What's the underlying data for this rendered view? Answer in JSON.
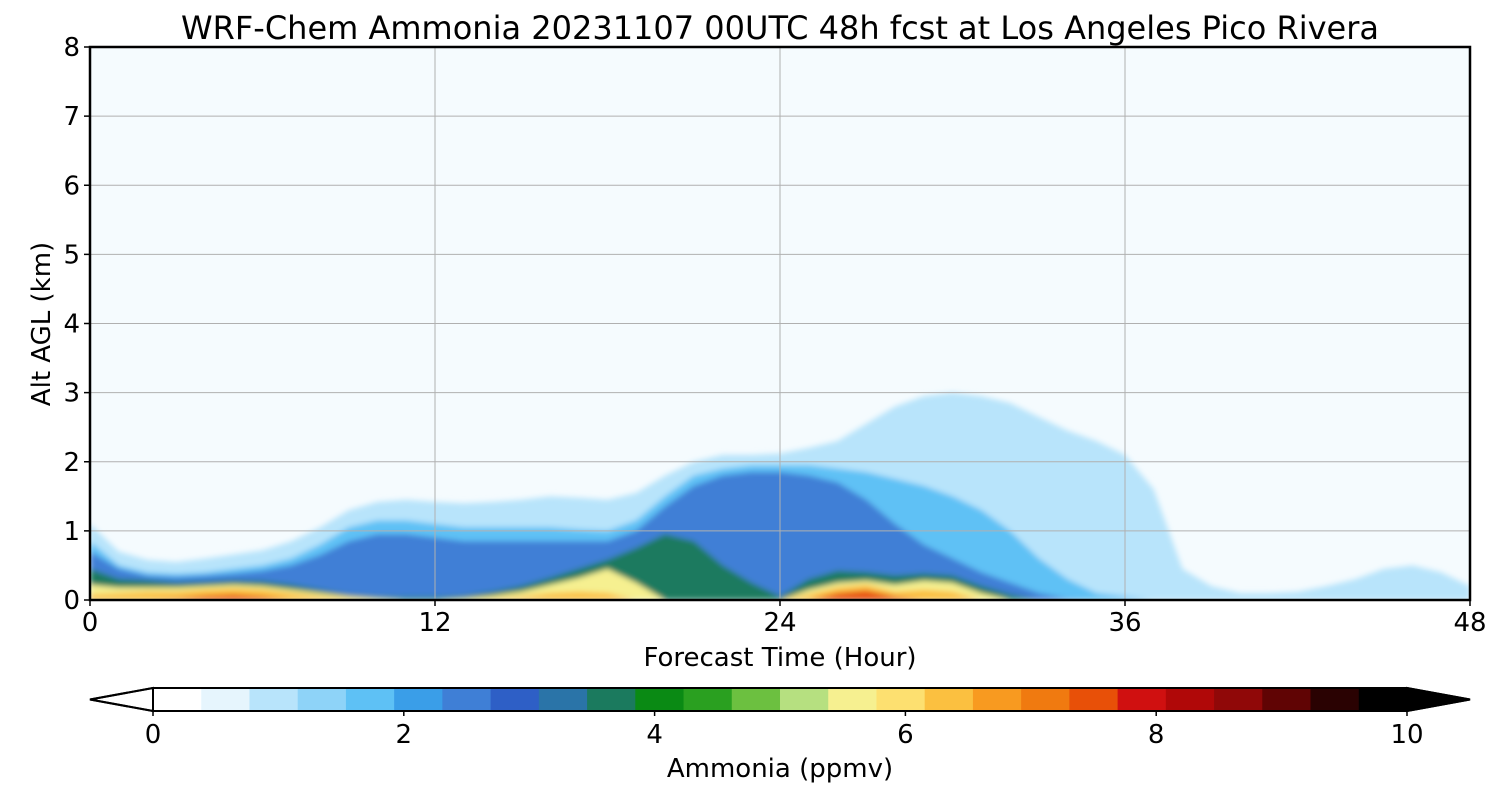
{
  "chart_data": {
    "type": "heatmap",
    "title": "WRF-Chem Ammonia  20231107 00UTC 48h fcst at Los Angeles Pico Rivera",
    "xlabel": "Forecast Time (Hour)",
    "ylabel": "Alt AGL (km)",
    "xlim": [
      0,
      48
    ],
    "ylim": [
      0,
      8
    ],
    "x_ticks": [
      "0",
      "12",
      "24",
      "36",
      "48"
    ],
    "y_ticks": [
      "0",
      "1",
      "2",
      "3",
      "4",
      "5",
      "6",
      "7",
      "8"
    ],
    "grid": true,
    "colorbar": {
      "label": "Ammonia  (ppmv)",
      "range": [
        0,
        10
      ],
      "ticks": [
        "0",
        "2",
        "4",
        "6",
        "8",
        "10"
      ],
      "extend": "both",
      "colors": [
        "#ffffff",
        "#e6f5fd",
        "#b8e4fb",
        "#8ed3f8",
        "#5ec1f5",
        "#3a9ee8",
        "#3f7fd6",
        "#2e5fc6",
        "#2a74a8",
        "#1b7a5e",
        "#0a8a14",
        "#2aa020",
        "#6cc040",
        "#b6e080",
        "#f6f090",
        "#fde070",
        "#fbc040",
        "#f89a20",
        "#f07a10",
        "#e85008",
        "#d01010",
        "#b00808",
        "#900808",
        "#600404",
        "#2a0202",
        "#000000"
      ]
    },
    "contour_layers": [
      {
        "value": 0.6,
        "x": [
          0,
          1,
          2,
          3,
          4,
          5,
          6,
          7,
          8,
          9,
          10,
          11,
          12,
          13,
          14,
          15,
          16,
          17,
          18,
          19,
          20,
          21,
          22,
          23,
          24,
          25,
          26,
          27,
          28,
          29,
          30,
          31,
          32,
          33,
          34,
          35,
          36,
          37,
          38,
          39,
          40,
          41,
          42,
          43,
          44,
          45,
          46,
          47,
          48
        ],
        "top": [
          1.1,
          0.7,
          0.58,
          0.55,
          0.6,
          0.66,
          0.72,
          0.85,
          1.05,
          1.3,
          1.42,
          1.45,
          1.42,
          1.4,
          1.42,
          1.45,
          1.5,
          1.48,
          1.45,
          1.55,
          1.8,
          2.0,
          2.1,
          2.1,
          2.12,
          2.2,
          2.3,
          2.55,
          2.8,
          2.95,
          3.0,
          2.95,
          2.85,
          2.65,
          2.45,
          2.3,
          2.1,
          1.6,
          0.45,
          0.2,
          0.1,
          0.1,
          0.12,
          0.2,
          0.3,
          0.45,
          0.5,
          0.4,
          0.2
        ]
      },
      {
        "value": 1.5,
        "x": [
          0,
          1,
          2,
          3,
          4,
          5,
          6,
          7,
          8,
          9,
          10,
          11,
          12,
          13,
          14,
          15,
          16,
          17,
          18,
          19,
          20,
          21,
          22,
          23,
          24,
          25,
          26,
          27,
          28,
          29,
          30,
          31,
          32,
          33,
          34,
          35,
          36,
          37,
          38,
          39,
          40,
          41,
          42,
          43,
          44,
          45,
          46,
          47,
          48
        ],
        "top": [
          0.85,
          0.5,
          0.4,
          0.38,
          0.4,
          0.45,
          0.5,
          0.6,
          0.8,
          1.05,
          1.15,
          1.15,
          1.1,
          1.05,
          1.05,
          1.05,
          1.05,
          1.02,
          1.0,
          1.15,
          1.5,
          1.8,
          1.9,
          1.95,
          1.95,
          1.95,
          1.9,
          1.85,
          1.75,
          1.65,
          1.5,
          1.3,
          1.0,
          0.6,
          0.3,
          0.1,
          0.05,
          0,
          0,
          0,
          0,
          0,
          0,
          0,
          0,
          0,
          0,
          0,
          0
        ]
      },
      {
        "value": 2.2,
        "x": [
          0,
          1,
          2,
          3,
          4,
          5,
          6,
          7,
          8,
          9,
          10,
          11,
          12,
          13,
          14,
          15,
          16,
          17,
          18,
          19,
          20,
          21,
          22,
          23,
          24,
          25,
          26,
          27,
          28,
          29,
          30,
          31,
          32,
          33,
          34,
          35,
          36,
          37,
          38,
          39,
          40,
          41,
          42,
          43,
          44,
          45,
          46,
          47,
          48
        ],
        "top": [
          0.7,
          0.45,
          0.35,
          0.33,
          0.35,
          0.38,
          0.42,
          0.5,
          0.65,
          0.85,
          0.95,
          0.95,
          0.9,
          0.85,
          0.85,
          0.85,
          0.85,
          0.85,
          0.85,
          1.0,
          1.35,
          1.65,
          1.8,
          1.85,
          1.85,
          1.8,
          1.7,
          1.45,
          1.1,
          0.8,
          0.6,
          0.4,
          0.25,
          0.1,
          0.02,
          0,
          0,
          0,
          0,
          0,
          0,
          0,
          0,
          0,
          0,
          0,
          0,
          0,
          0
        ]
      },
      {
        "value": 3.6,
        "x": [
          0,
          1,
          2,
          3,
          4,
          5,
          6,
          7,
          8,
          9,
          10,
          11,
          12,
          13,
          14,
          15,
          16,
          17,
          18,
          19,
          20,
          21,
          22,
          23,
          24,
          25,
          26,
          27,
          28,
          29,
          30,
          31,
          32,
          33,
          34,
          35,
          36,
          37,
          38,
          39,
          40,
          41,
          42,
          43,
          44,
          45,
          46,
          47,
          48
        ],
        "top": [
          0.45,
          0.3,
          0.28,
          0.25,
          0.26,
          0.28,
          0.27,
          0.22,
          0.15,
          0.08,
          0.05,
          0.04,
          0.04,
          0.06,
          0.12,
          0.2,
          0.32,
          0.45,
          0.58,
          0.75,
          0.95,
          0.85,
          0.5,
          0.25,
          0.05,
          0.3,
          0.42,
          0.4,
          0.35,
          0.38,
          0.35,
          0.2,
          0.08,
          0,
          0,
          0,
          0,
          0,
          0,
          0,
          0,
          0,
          0,
          0,
          0,
          0,
          0,
          0,
          0
        ]
      },
      {
        "value": 5.4,
        "x": [
          0,
          1,
          2,
          3,
          4,
          5,
          6,
          7,
          8,
          9,
          10,
          11,
          12,
          13,
          14,
          15,
          16,
          17,
          18,
          19,
          20,
          21,
          22,
          23,
          24,
          25,
          26,
          27,
          28,
          29,
          30,
          31,
          32,
          33,
          34,
          35,
          36,
          37,
          38,
          39,
          40,
          41,
          42,
          43,
          44,
          45,
          46,
          47,
          48
        ],
        "top": [
          0.22,
          0.18,
          0.18,
          0.18,
          0.2,
          0.22,
          0.2,
          0.15,
          0.1,
          0.05,
          0.02,
          0,
          0,
          0.02,
          0.06,
          0.12,
          0.22,
          0.32,
          0.45,
          0.25,
          0,
          0,
          0,
          0,
          0,
          0.15,
          0.25,
          0.28,
          0.22,
          0.28,
          0.25,
          0.1,
          0,
          0,
          0,
          0,
          0,
          0,
          0,
          0,
          0,
          0,
          0,
          0,
          0,
          0,
          0,
          0,
          0
        ]
      },
      {
        "value": 6.4,
        "x": [
          0,
          1,
          2,
          3,
          4,
          5,
          6,
          7,
          8,
          9,
          10,
          11,
          12,
          13,
          14,
          15,
          16,
          17,
          18,
          19,
          20,
          21,
          22,
          23,
          24,
          25,
          26,
          27,
          28,
          29,
          30,
          31,
          32,
          33,
          34,
          35,
          36,
          37,
          38,
          39,
          40,
          41,
          42,
          43,
          44,
          45,
          46,
          47,
          48
        ],
        "top": [
          0.08,
          0.1,
          0.12,
          0.12,
          0.15,
          0.17,
          0.15,
          0.1,
          0.05,
          0.02,
          0,
          0,
          0,
          0,
          0.02,
          0.05,
          0.1,
          0.12,
          0.1,
          0,
          0,
          0,
          0,
          0,
          0,
          0.08,
          0.18,
          0.22,
          0.12,
          0.15,
          0.12,
          0,
          0,
          0,
          0,
          0,
          0,
          0,
          0,
          0,
          0,
          0,
          0,
          0,
          0,
          0,
          0,
          0,
          0
        ]
      },
      {
        "value": 7.6,
        "x": [
          0,
          1,
          2,
          3,
          4,
          5,
          6,
          7,
          8,
          9,
          10,
          11,
          12,
          13,
          14,
          15,
          16,
          17,
          18,
          19,
          20,
          21,
          22,
          23,
          24,
          25,
          26,
          27,
          28,
          29,
          30,
          31,
          32,
          33,
          34,
          35,
          36,
          37,
          38,
          39,
          40,
          41,
          42,
          43,
          44,
          45,
          46,
          47,
          48
        ],
        "top": [
          0,
          0,
          0,
          0.02,
          0.06,
          0.08,
          0.05,
          0,
          0,
          0,
          0,
          0,
          0,
          0,
          0,
          0,
          0,
          0,
          0,
          0,
          0,
          0,
          0,
          0,
          0,
          0,
          0.1,
          0.14,
          0.05,
          0,
          0,
          0,
          0,
          0,
          0,
          0,
          0,
          0,
          0,
          0,
          0,
          0,
          0,
          0,
          0,
          0,
          0,
          0,
          0
        ]
      }
    ]
  }
}
